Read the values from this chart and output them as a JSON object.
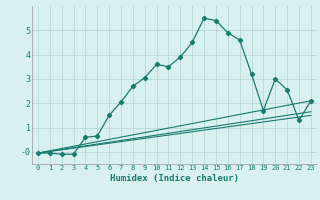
{
  "xlabel": "Humidex (Indice chaleur)",
  "bg_color": "#d8f0f0",
  "grid_color": "#b8d8d8",
  "line_color": "#1a7a6e",
  "xlim": [
    -0.5,
    23.5
  ],
  "ylim": [
    -0.5,
    6.0
  ],
  "yticks": [
    0,
    1,
    2,
    3,
    4,
    5
  ],
  "ytick_labels": [
    "-0",
    "1",
    "2",
    "3",
    "4",
    "5"
  ],
  "xticks": [
    0,
    1,
    2,
    3,
    4,
    5,
    6,
    7,
    8,
    9,
    10,
    11,
    12,
    13,
    14,
    15,
    16,
    17,
    18,
    19,
    20,
    21,
    22,
    23
  ],
  "main_line_x": [
    0,
    1,
    2,
    3,
    4,
    5,
    6,
    7,
    8,
    9,
    10,
    11,
    12,
    13,
    14,
    15,
    16,
    17,
    18,
    19,
    20,
    21,
    22,
    23
  ],
  "main_line_y": [
    -0.05,
    -0.05,
    -0.1,
    -0.1,
    0.6,
    0.65,
    1.5,
    2.05,
    2.7,
    3.05,
    3.6,
    3.5,
    3.9,
    4.5,
    5.5,
    5.4,
    4.9,
    4.6,
    3.2,
    1.7,
    3.0,
    2.55,
    1.3,
    2.1
  ],
  "line2_x": [
    0,
    23
  ],
  "line2_y": [
    -0.05,
    1.65
  ],
  "line3_x": [
    0,
    23
  ],
  "line3_y": [
    -0.05,
    1.5
  ],
  "line4_x": [
    0,
    23
  ],
  "line4_y": [
    -0.05,
    2.1
  ]
}
